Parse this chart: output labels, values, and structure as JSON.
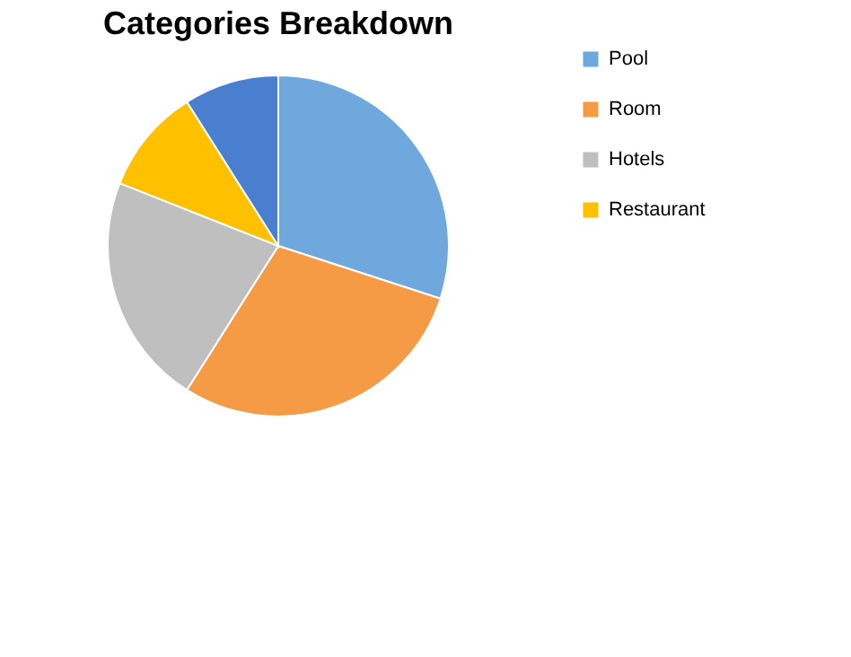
{
  "chart_data": {
    "type": "pie",
    "title": "Categories Breakdown",
    "categories": [
      "Pool",
      "Room",
      "Hotels",
      "Restaurant",
      null
    ],
    "values": [
      30,
      29,
      22,
      10,
      9
    ],
    "colors": [
      "#6fa8dc",
      "#f59a45",
      "#bfbfbf",
      "#ffc000",
      "#4a7fd0"
    ],
    "legend": "right"
  }
}
